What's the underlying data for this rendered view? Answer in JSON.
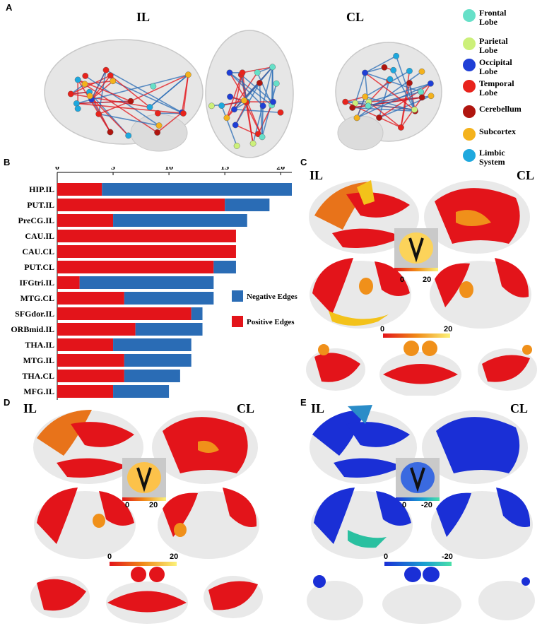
{
  "panels": {
    "a": {
      "letter": "A",
      "il": "IL",
      "cl": "CL"
    },
    "b": {
      "letter": "B"
    },
    "c": {
      "letter": "C",
      "il": "IL",
      "cl": "CL",
      "inset_ticks": [
        "0",
        "20"
      ],
      "bar_ticks": [
        "0",
        "20"
      ]
    },
    "d": {
      "letter": "D",
      "il": "IL",
      "cl": "CL",
      "inset_ticks": [
        "0",
        "20"
      ],
      "bar_ticks": [
        "0",
        "20"
      ]
    },
    "e": {
      "letter": "E",
      "il": "IL",
      "cl": "CL",
      "inset_ticks": [
        "0",
        "-20"
      ],
      "bar_ticks": [
        "0",
        "-20"
      ]
    }
  },
  "node_legend": [
    {
      "label": "Frontal Lobe",
      "color": "#66e0c8"
    },
    {
      "label": "Parietal Lobe",
      "color": "#ccf07a"
    },
    {
      "label": "Occipital Lobe",
      "color": "#1f3fd6"
    },
    {
      "label": "Temporal Lobe",
      "color": "#e8231c"
    },
    {
      "label": "Cerebellum",
      "color": "#b0150f"
    },
    {
      "label": "Subcortex",
      "color": "#f4b21c"
    },
    {
      "label": "Limbic System",
      "color": "#1ea8de"
    }
  ],
  "colors": {
    "positive": "#e3141a",
    "negative": "#2a6cb5",
    "colormap_low": "#e3141a",
    "colormap_high": "#fbf27a",
    "colormap_neg_low": "#1a2fd6",
    "colormap_neg_high": "#4ae0a8"
  },
  "chart_data": {
    "type": "bar",
    "orientation": "horizontal",
    "stacked": true,
    "categories": [
      "HIP.IL",
      "PUT.IL",
      "PreCG.IL",
      "CAU.IL",
      "CAU.CL",
      "PUT.CL",
      "IFGtri.IL",
      "MTG.CL",
      "SFGdor.IL",
      "ORBmid.IL",
      "THA.IL",
      "MTG.IL",
      "THA.CL",
      "MFG.IL"
    ],
    "series": [
      {
        "name": "Positive Edges",
        "values": [
          4,
          15,
          5,
          16,
          16,
          14,
          2,
          6,
          12,
          7,
          5,
          6,
          6,
          5
        ]
      },
      {
        "name": "Negative Edges",
        "values": [
          17,
          4,
          12,
          0,
          0,
          2,
          12,
          8,
          1,
          6,
          7,
          6,
          5,
          5
        ]
      }
    ],
    "x_ticks": [
      "0",
      "5",
      "10",
      "15",
      "20"
    ],
    "xlim": [
      0,
      21
    ],
    "legend_position": "right",
    "grid": false
  }
}
